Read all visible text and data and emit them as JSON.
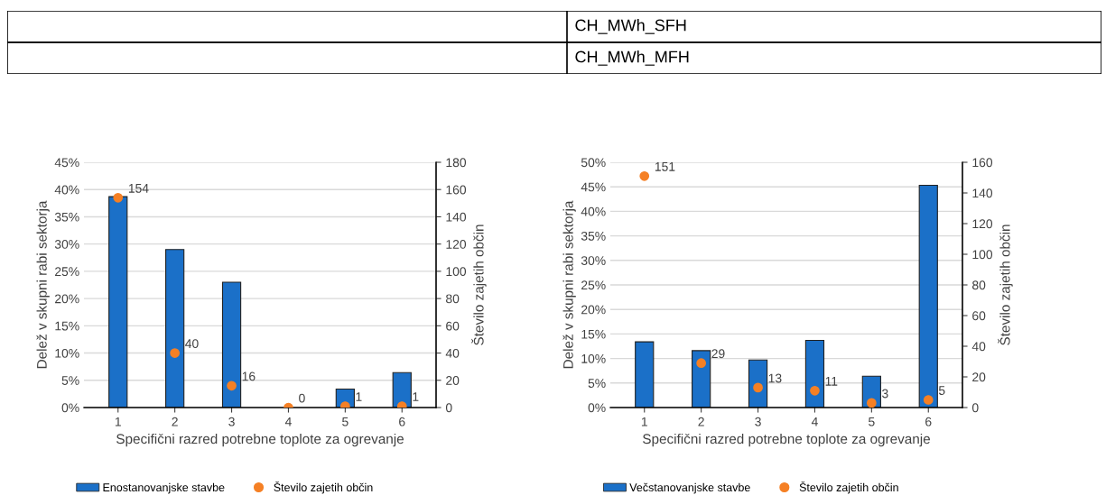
{
  "chart_data": [
    {
      "type": "other",
      "annotations": [
        "CH_MWh_SFH",
        "CH_MWh_MFH"
      ]
    },
    {
      "type": "bar",
      "xlabel": "Specifični razred potrebne toplote za ogrevanje",
      "ylabel": "Delež v skupni rabi sektorja",
      "y2label": "Število zajetih občin",
      "categories": [
        "1",
        "2",
        "3",
        "4",
        "5",
        "6"
      ],
      "series": [
        {
          "name": "Enostanovanjske stavbe",
          "type": "bar",
          "color": "#1b70c8",
          "values": [
            38.7,
            29.0,
            23.0,
            0,
            3.4,
            6.4
          ]
        },
        {
          "name": "Število zajetih občin",
          "type": "scatter",
          "axis": "y2",
          "color": "#f58025",
          "marker": "circle",
          "data_labels": true,
          "values": [
            154,
            40,
            16,
            0,
            1,
            1
          ]
        }
      ],
      "ylim": [
        0,
        45
      ],
      "yticks": [
        {
          "value": 0,
          "label": "0%"
        },
        {
          "value": 5,
          "label": "5%"
        },
        {
          "value": 10,
          "label": "10%"
        },
        {
          "value": 15,
          "label": "15%"
        },
        {
          "value": 20,
          "label": "20%"
        },
        {
          "value": 25,
          "label": "25%"
        },
        {
          "value": 30,
          "label": "30%"
        },
        {
          "value": 35,
          "label": "35%"
        },
        {
          "value": 40,
          "label": "40%"
        },
        {
          "value": 45,
          "label": "45%"
        }
      ],
      "y2lim": [
        0,
        180
      ],
      "y2ticks": [
        0,
        20,
        40,
        60,
        80,
        100,
        120,
        140,
        160,
        180
      ],
      "grid": "y",
      "legend": "bottom"
    },
    {
      "type": "bar",
      "xlabel": "Specifični razred potrebne toplote za ogrevanje",
      "ylabel": "Delež v skupni rabi sektorja",
      "y2label": "Število zajetih občin",
      "categories": [
        "1",
        "2",
        "3",
        "4",
        "5",
        "6"
      ],
      "series": [
        {
          "name": "Večstanovanjske stavbe",
          "type": "bar",
          "color": "#1b70c8",
          "values": [
            13.4,
            11.6,
            9.7,
            13.7,
            6.4,
            45.3
          ]
        },
        {
          "name": "Število zajetih občin",
          "type": "scatter",
          "axis": "y2",
          "color": "#f58025",
          "marker": "circle",
          "data_labels": true,
          "values": [
            151,
            29,
            13,
            11,
            3,
            5
          ]
        }
      ],
      "ylim": [
        0,
        50
      ],
      "yticks": [
        {
          "value": 0,
          "label": "0%"
        },
        {
          "value": 5,
          "label": "5%"
        },
        {
          "value": 10,
          "label": "10%"
        },
        {
          "value": 15,
          "label": "15%"
        },
        {
          "value": 20,
          "label": "20%"
        },
        {
          "value": 25,
          "label": "25%"
        },
        {
          "value": 30,
          "label": "30%"
        },
        {
          "value": 35,
          "label": "35%"
        },
        {
          "value": 40,
          "label": "40%"
        },
        {
          "value": 45,
          "label": "45%"
        },
        {
          "value": 50,
          "label": "50%"
        }
      ],
      "y2lim": [
        0,
        160
      ],
      "y2ticks": [
        0,
        20,
        40,
        60,
        80,
        100,
        120,
        140,
        160
      ],
      "grid": "y",
      "legend": "bottom"
    }
  ]
}
